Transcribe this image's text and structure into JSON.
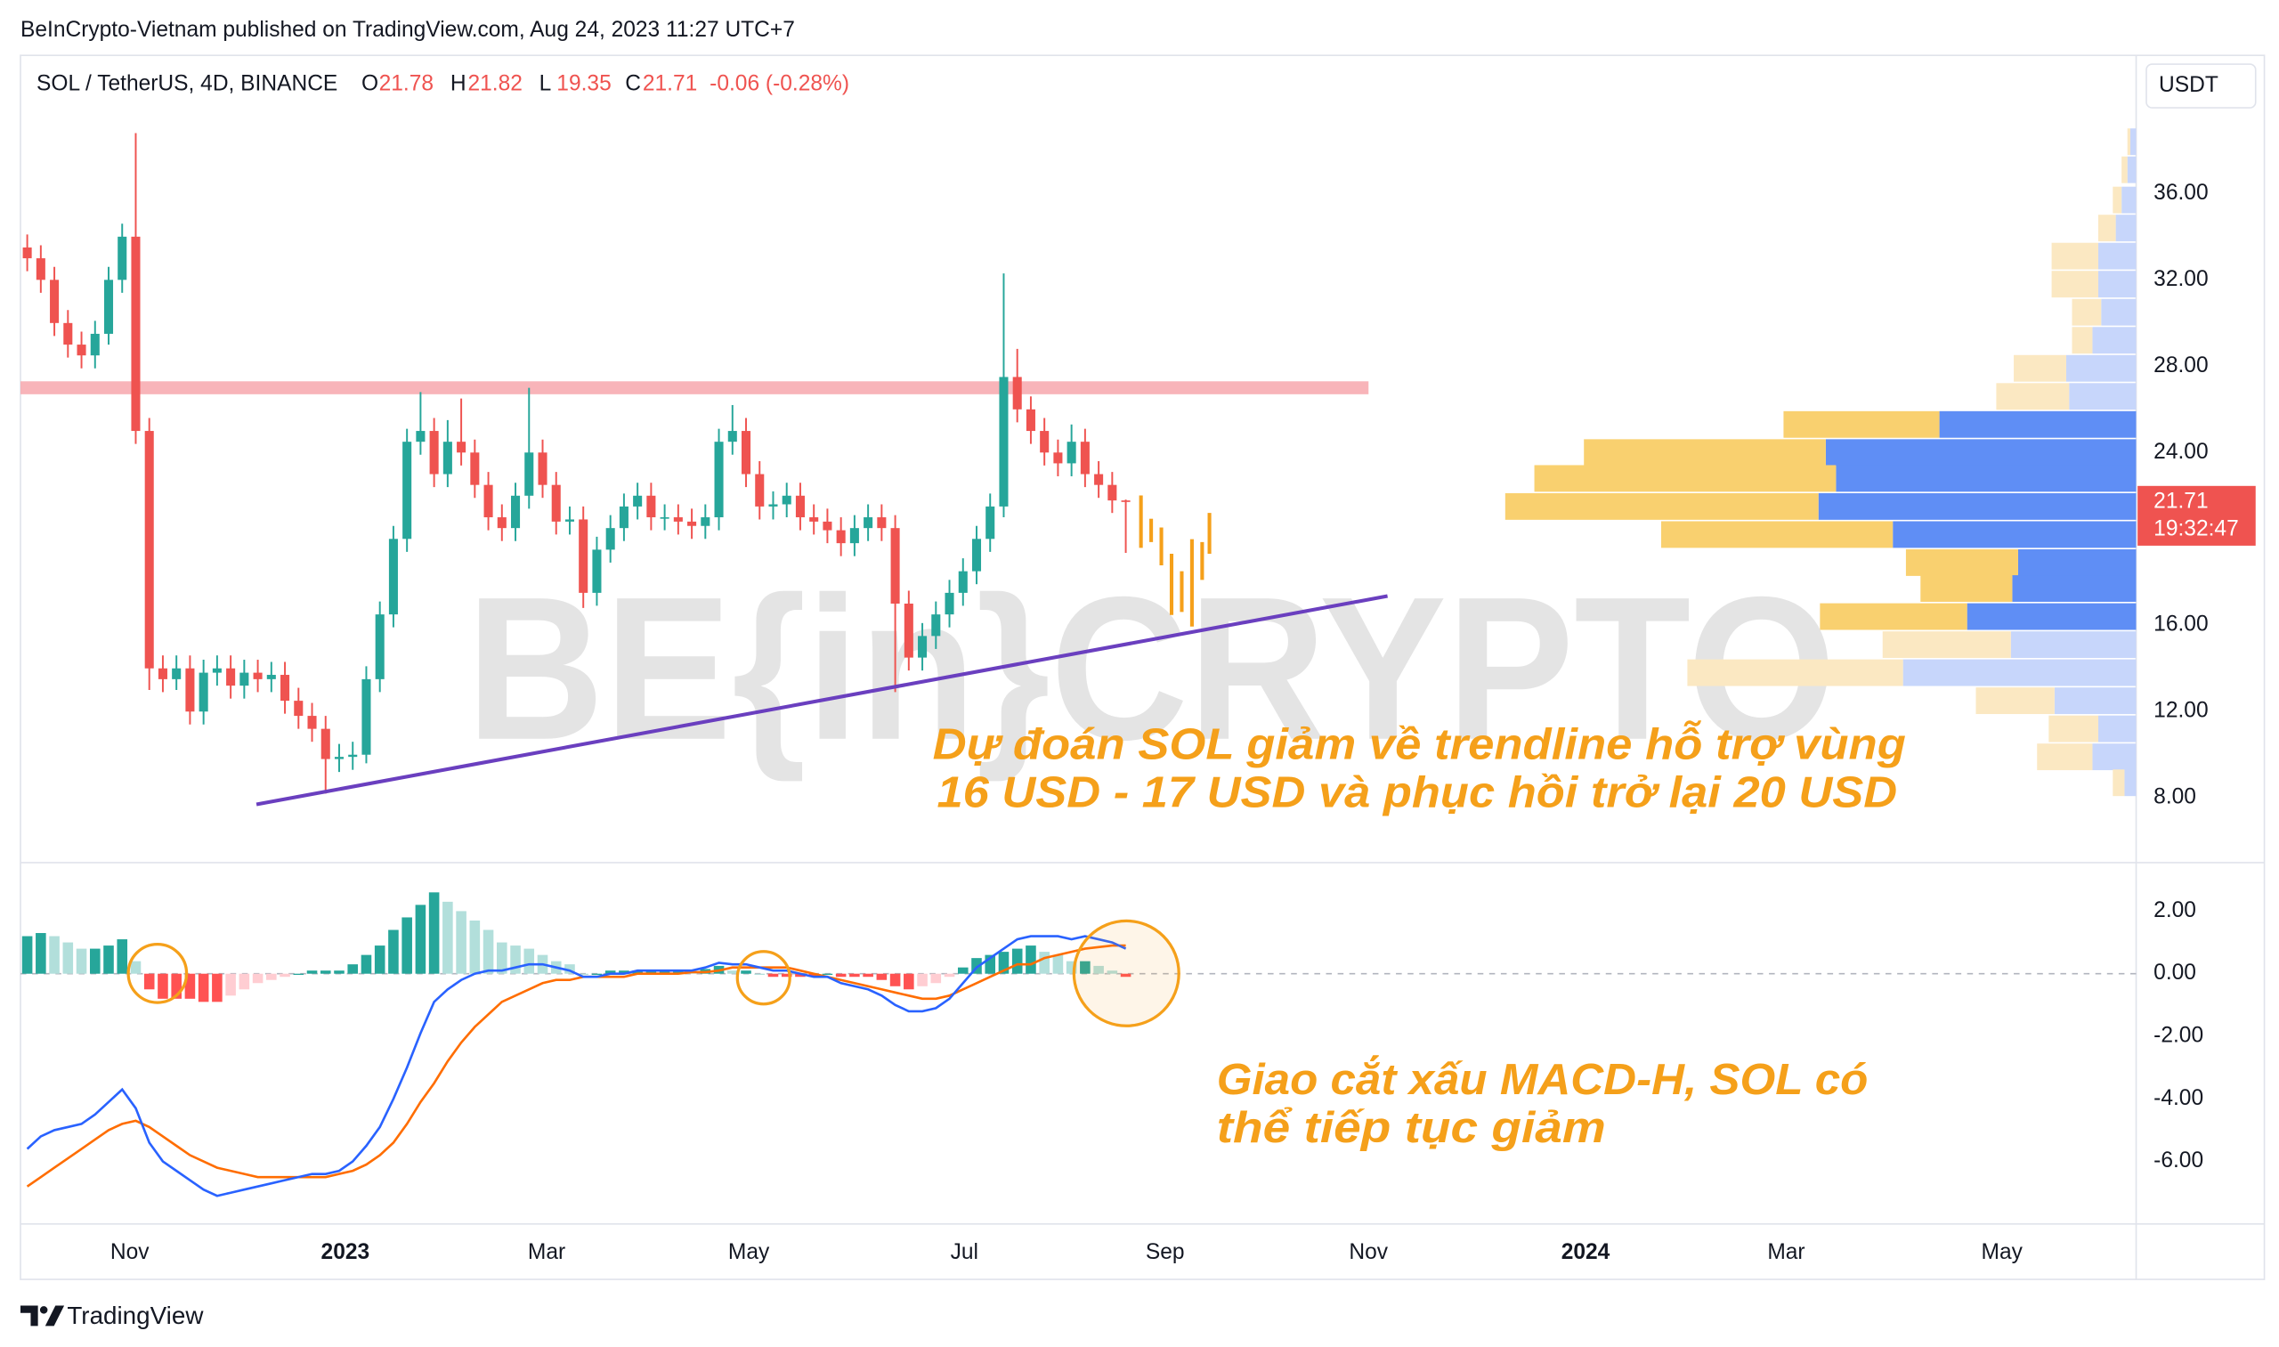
{
  "header": "BeInCrypto-Vietnam published on TradingView.com, Aug 24, 2023 11:27 UTC+7",
  "footer": "TradingView",
  "watermark": "BE{in}CRYPTO",
  "currency": "USDT",
  "chart_data": [
    {
      "type": "candlestick",
      "title": "SOL / TetherUS, 4D, BINANCE",
      "legend_labels": [
        "O",
        "H",
        "L",
        "C"
      ],
      "change": "-0.06 (-0.28%)",
      "countdown": "19:32:47",
      "up_color": "#26a69a",
      "down_color": "#ef5350",
      "open": [
        33.5,
        33,
        32,
        30,
        29,
        28.5,
        29.5,
        32,
        34,
        25,
        14,
        13.5,
        14,
        12,
        13.8,
        14,
        13.2,
        13.8,
        13.5,
        13.7,
        12.5,
        11.8,
        11.2,
        9.8,
        9.9,
        10,
        13.5,
        16.5,
        20,
        24.5,
        25,
        23,
        24.5,
        24,
        22.5,
        21,
        20.5,
        22,
        24,
        22.5,
        20.8,
        20.9,
        17.5,
        19.5,
        20.5,
        21.5,
        22,
        21,
        21,
        20.8,
        20.6,
        21,
        24.5,
        25,
        23,
        21.5,
        21.6,
        22,
        21,
        20.8,
        20.4,
        19.8,
        20.5,
        21,
        20.5,
        17,
        14.5,
        15.5,
        16.5,
        17.5,
        18.5,
        20,
        21.5,
        27.5,
        26,
        25,
        24,
        23.5,
        24.5,
        23,
        22.5,
        21.78
      ],
      "high": [
        34.1,
        33.6,
        32.6,
        30.6,
        29.6,
        30.1,
        32.6,
        34.6,
        38.8,
        25.6,
        14.6,
        14.6,
        14.6,
        14.4,
        14.6,
        14.6,
        14.4,
        14.4,
        14.3,
        14.3,
        13.1,
        12.4,
        11.8,
        10.5,
        10.6,
        14.1,
        17.1,
        20.6,
        25.1,
        26.8,
        25.6,
        25.5,
        26.5,
        24.6,
        23.1,
        21.6,
        22.6,
        27,
        24.6,
        23.1,
        21.5,
        21.5,
        20.1,
        21.1,
        22.1,
        22.6,
        22.6,
        21.6,
        21.6,
        21.4,
        21.6,
        25.1,
        26.2,
        25.6,
        23.6,
        22.2,
        22.6,
        22.6,
        21.6,
        21.4,
        21,
        21.1,
        21.6,
        21.6,
        21.1,
        17.6,
        16.1,
        17.1,
        18.1,
        19.1,
        20.6,
        22.1,
        32.3,
        28.8,
        26.6,
        25.6,
        24.6,
        25.3,
        25.1,
        23.6,
        23.1,
        21.82
      ],
      "low": [
        32.4,
        31.4,
        29.4,
        28.4,
        27.9,
        27.9,
        29,
        31.4,
        24.4,
        13,
        12.9,
        13,
        11.4,
        11.4,
        13.2,
        12.6,
        12.6,
        12.9,
        12.9,
        11.9,
        11.2,
        10.6,
        8.2,
        9.2,
        9.3,
        9.6,
        12.9,
        15.9,
        19.4,
        23.9,
        22.4,
        22.4,
        23.4,
        21.9,
        20.4,
        19.9,
        19.9,
        21.4,
        21.9,
        20.2,
        20.2,
        16.8,
        16.9,
        18.9,
        19.9,
        20.9,
        20.4,
        20.4,
        20.2,
        20,
        20,
        20.4,
        23.9,
        22.4,
        20.9,
        20.9,
        21,
        20.4,
        20.2,
        19.8,
        19.2,
        19.2,
        19.9,
        19.9,
        12.9,
        13.9,
        13.9,
        14.9,
        15.9,
        16.9,
        17.9,
        19.4,
        21,
        25.4,
        24.4,
        23.4,
        22.9,
        22.9,
        22.4,
        21.9,
        21.2,
        19.35
      ],
      "close": [
        33,
        32,
        30,
        29,
        28.5,
        29.5,
        32,
        34,
        25,
        14,
        13.5,
        14,
        12,
        13.8,
        14,
        13.2,
        13.8,
        13.5,
        13.7,
        12.5,
        11.8,
        11.2,
        9.8,
        9.9,
        10,
        13.5,
        16.5,
        20,
        24.5,
        25,
        23,
        24.5,
        24,
        22.5,
        21,
        20.5,
        22,
        24,
        22.5,
        20.8,
        20.9,
        17.5,
        19.5,
        20.5,
        21.5,
        22,
        21,
        21,
        20.8,
        20.6,
        21,
        24.5,
        25,
        23,
        21.5,
        21.6,
        22,
        21,
        20.8,
        20.4,
        19.8,
        20.5,
        21,
        20.5,
        17,
        14.5,
        15.5,
        16.5,
        17.5,
        18.5,
        20,
        21.5,
        27.5,
        26,
        25,
        24,
        23.5,
        24.5,
        23,
        22.5,
        21.78,
        21.71
      ],
      "xlim": [
        -0.5,
        155.5
      ],
      "xticks": [
        {
          "value": 7.56,
          "label": "Nov"
        },
        {
          "value": 23.45,
          "label": "2023"
        },
        {
          "value": 38.3,
          "label": "Mar"
        },
        {
          "value": 53.2,
          "label": "May"
        },
        {
          "value": 69.1,
          "label": "Jul"
        },
        {
          "value": 83.9,
          "label": "Sep"
        },
        {
          "value": 98.9,
          "label": "Nov"
        },
        {
          "value": 114.9,
          "label": "2024"
        },
        {
          "value": 129.7,
          "label": "Mar"
        },
        {
          "value": 145.6,
          "label": "May"
        }
      ],
      "ylim": [
        5,
        42.4
      ],
      "yticks": [
        {
          "value": 8,
          "label": "8.00"
        },
        {
          "value": 12,
          "label": "12.00"
        },
        {
          "value": 16,
          "label": "16.00"
        },
        {
          "value": 24,
          "label": "24.00"
        },
        {
          "value": 28,
          "label": "28.00"
        },
        {
          "value": 32,
          "label": "32.00"
        },
        {
          "value": 36,
          "label": "36.00"
        }
      ],
      "grid": false,
      "resistance_zone": {
        "x": [
          -0.5,
          98.9
        ],
        "y": [
          26.7,
          27.3
        ],
        "color": "#f7a7ad"
      },
      "trendline": {
        "x": [
          16.9,
          100.3
        ],
        "y": [
          7.7,
          17.35
        ],
        "color": "#6a3fbf"
      },
      "annotation": [
        "Dự đoán SOL giảm về trendline hỗ trợ vùng",
        "16 USD - 17 USD và phục hồi trở lại 20 USD"
      ],
      "volume_profile": {
        "levels": [
          38.4,
          37.1,
          35.7,
          34.4,
          33.1,
          31.8,
          30.5,
          29.2,
          27.9,
          26.6,
          25.3,
          24.0,
          22.8,
          21.5,
          20.2,
          18.9,
          17.7,
          16.4,
          15.1,
          13.8,
          12.5,
          11.2,
          9.9,
          8.7
        ],
        "up": [
          4,
          6,
          10,
          14,
          26,
          26,
          24,
          30,
          48,
          46,
          135,
          213,
          206,
          218,
          167,
          81,
          85,
          116,
          86,
          160,
          56,
          26,
          30,
          8
        ],
        "down": [
          2,
          4,
          6,
          12,
          32,
          32,
          20,
          14,
          36,
          50,
          107,
          166,
          207,
          215,
          159,
          77,
          63,
          101,
          88,
          148,
          54,
          34,
          38,
          8
        ],
        "value_area": [
          15.75,
          25.95
        ],
        "up_color": "#5f8ef5",
        "down_color": "#f9d06f",
        "up_light_color": "#c7d6fb",
        "down_light_color": "#fbe8c2"
      }
    },
    {
      "type": "macd",
      "ylim": [
        -8,
        3.55
      ],
      "yticks": [
        {
          "value": 2,
          "label": "2.00"
        },
        {
          "value": 0,
          "label": "0.00"
        },
        {
          "value": -2,
          "label": "-2.00"
        },
        {
          "value": -4,
          "label": "-4.00"
        },
        {
          "value": -6,
          "label": "-6.00"
        }
      ],
      "histogram": {
        "values": [
          1.2,
          1.3,
          1.2,
          1.0,
          0.8,
          0.8,
          0.9,
          1.1,
          0.4,
          -0.5,
          -0.8,
          -0.8,
          -0.8,
          -0.9,
          -0.9,
          -0.7,
          -0.5,
          -0.3,
          -0.2,
          -0.1,
          0.0,
          0.1,
          0.1,
          0.1,
          0.3,
          0.6,
          0.9,
          1.4,
          1.8,
          2.2,
          2.6,
          2.3,
          2.0,
          1.7,
          1.4,
          1.0,
          0.9,
          0.8,
          0.6,
          0.4,
          0.3,
          0.0,
          0.0,
          0.1,
          0.1,
          0.1,
          0.1,
          0.1,
          0.1,
          0.05,
          0.15,
          0.25,
          0.1,
          0.1,
          0.0,
          -0.1,
          -0.1,
          -0.1,
          -0.1,
          0.0,
          -0.1,
          -0.1,
          -0.1,
          -0.2,
          -0.4,
          -0.5,
          -0.4,
          -0.3,
          -0.1,
          0.2,
          0.5,
          0.6,
          0.7,
          0.8,
          0.9,
          0.7,
          0.6,
          0.4,
          0.4,
          0.25,
          0.1,
          -0.1
        ],
        "colors": {
          "up": "#26a69a",
          "up_light": "#b2dfdb",
          "down": "#ff5252",
          "down_light": "#ffcdd2"
        }
      },
      "macd": {
        "color": "#2962ff",
        "values": [
          -5.6,
          -5.2,
          -5.0,
          -4.9,
          -4.8,
          -4.5,
          -4.1,
          -3.7,
          -4.3,
          -5.4,
          -6.0,
          -6.3,
          -6.6,
          -6.9,
          -7.1,
          -7.0,
          -6.9,
          -6.8,
          -6.7,
          -6.6,
          -6.5,
          -6.4,
          -6.4,
          -6.3,
          -6.0,
          -5.5,
          -4.9,
          -4.0,
          -3.0,
          -1.9,
          -0.9,
          -0.5,
          -0.2,
          0.0,
          0.1,
          0.1,
          0.2,
          0.3,
          0.3,
          0.2,
          0.1,
          -0.1,
          -0.1,
          0.0,
          0.0,
          0.1,
          0.1,
          0.1,
          0.1,
          0.1,
          0.2,
          0.35,
          0.3,
          0.3,
          0.2,
          0.1,
          0.1,
          0.0,
          -0.1,
          -0.1,
          -0.3,
          -0.4,
          -0.5,
          -0.7,
          -1.0,
          -1.2,
          -1.2,
          -1.1,
          -0.8,
          -0.3,
          0.2,
          0.5,
          0.8,
          1.1,
          1.2,
          1.2,
          1.2,
          1.1,
          1.2,
          1.1,
          1.0,
          0.8
        ]
      },
      "signal": {
        "color": "#ff6d00",
        "values": [
          -6.8,
          -6.5,
          -6.2,
          -5.9,
          -5.6,
          -5.3,
          -5.0,
          -4.8,
          -4.7,
          -4.9,
          -5.2,
          -5.5,
          -5.8,
          -6.0,
          -6.2,
          -6.3,
          -6.4,
          -6.5,
          -6.5,
          -6.5,
          -6.5,
          -6.5,
          -6.5,
          -6.4,
          -6.3,
          -6.1,
          -5.8,
          -5.4,
          -4.8,
          -4.1,
          -3.5,
          -2.8,
          -2.2,
          -1.7,
          -1.3,
          -0.9,
          -0.7,
          -0.5,
          -0.3,
          -0.2,
          -0.2,
          -0.1,
          -0.1,
          -0.1,
          -0.1,
          0.0,
          0.0,
          0.0,
          0.0,
          0.05,
          0.05,
          0.1,
          0.2,
          0.2,
          0.2,
          0.2,
          0.2,
          0.1,
          0.0,
          -0.1,
          -0.2,
          -0.3,
          -0.4,
          -0.5,
          -0.6,
          -0.7,
          -0.8,
          -0.8,
          -0.7,
          -0.5,
          -0.3,
          -0.1,
          0.1,
          0.3,
          0.3,
          0.5,
          0.6,
          0.7,
          0.8,
          0.85,
          0.9,
          0.9
        ]
      },
      "annotation": [
        "Giao cắt xấu MACD-H, SOL có",
        "thể tiếp tục giảm"
      ]
    }
  ]
}
